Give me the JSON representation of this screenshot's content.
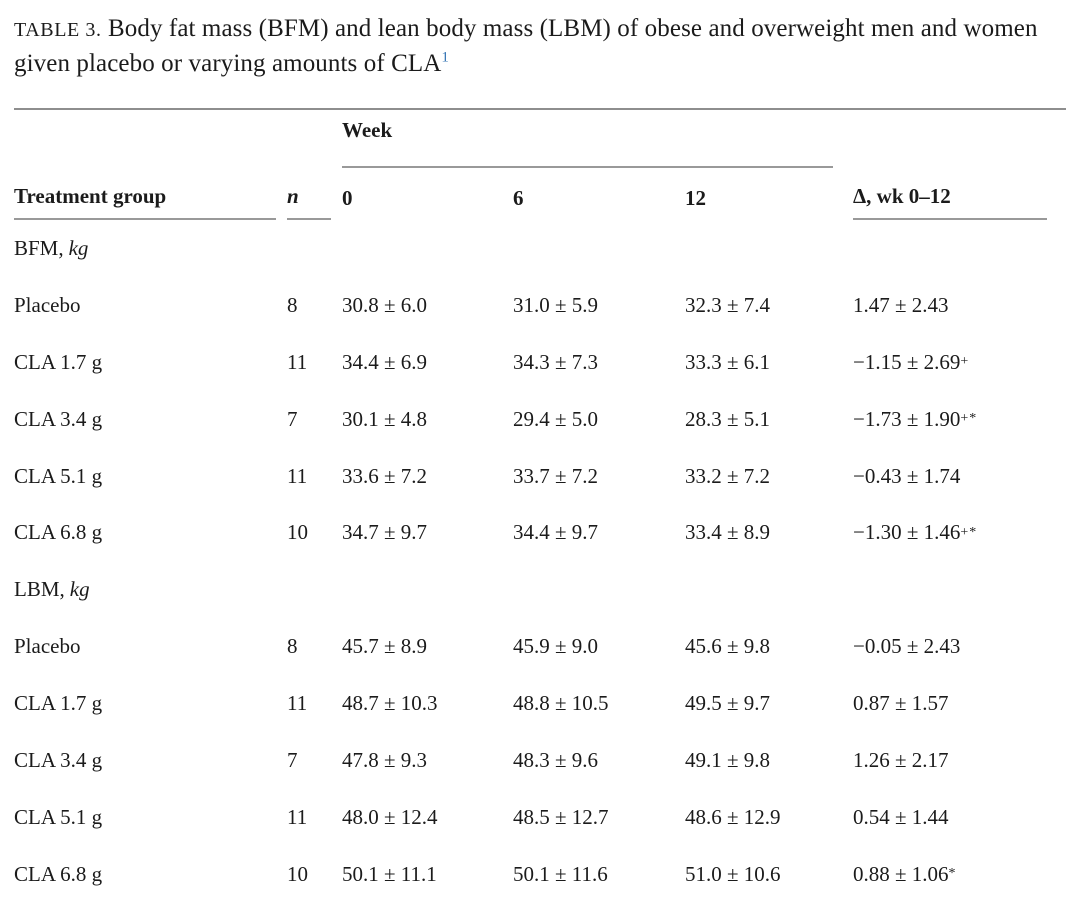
{
  "colors": {
    "text": "#1b1b1b",
    "rule": "#999999",
    "footnote_link": "#3474b4",
    "background": "#ffffff"
  },
  "title": {
    "label": "TABLE 3.",
    "text": " Body fat mass (BFM) and lean body mass (LBM) of obese and overweight men and women given placebo or varying amounts of CLA",
    "footnote_ref": "1"
  },
  "table": {
    "spanner": "Week",
    "headers": {
      "group": "Treatment group",
      "n": "n",
      "w0": "0",
      "w6": "6",
      "w12": "12",
      "delta": "Δ, wk 0–12"
    },
    "sections": [
      {
        "label": "BFM,",
        "unit": "kg",
        "rows": [
          {
            "group": "Placebo",
            "n": "8",
            "w0": "30.8 ± 6.0",
            "w6": "31.0 ± 5.9",
            "w12": "32.3 ± 7.4",
            "delta": "1.47 ± 2.43",
            "delta_sup": ""
          },
          {
            "group": "CLA 1.7 g",
            "n": "11",
            "w0": "34.4 ± 6.9",
            "w6": "34.3 ± 7.3",
            "w12": "33.3 ± 6.1",
            "delta": "−1.15 ± 2.69",
            "delta_sup": "+"
          },
          {
            "group": "CLA 3.4 g",
            "n": "7",
            "w0": "30.1 ± 4.8",
            "w6": "29.4 ± 5.0",
            "w12": "28.3 ± 5.1",
            "delta": "−1.73 ± 1.90",
            "delta_sup": "+*"
          },
          {
            "group": "CLA 5.1 g",
            "n": "11",
            "w0": "33.6 ± 7.2",
            "w6": "33.7 ± 7.2",
            "w12": "33.2 ± 7.2",
            "delta": "−0.43 ± 1.74",
            "delta_sup": ""
          },
          {
            "group": "CLA 6.8 g",
            "n": "10",
            "w0": "34.7 ± 9.7",
            "w6": "34.4 ± 9.7",
            "w12": "33.4 ± 8.9",
            "delta": "−1.30 ± 1.46",
            "delta_sup": "+*"
          }
        ]
      },
      {
        "label": "LBM,",
        "unit": "kg",
        "rows": [
          {
            "group": "Placebo",
            "n": "8",
            "w0": "45.7 ± 8.9",
            "w6": "45.9 ± 9.0",
            "w12": "45.6 ± 9.8",
            "delta": "−0.05 ± 2.43",
            "delta_sup": ""
          },
          {
            "group": "CLA 1.7 g",
            "n": "11",
            "w0": "48.7 ± 10.3",
            "w6": "48.8 ± 10.5",
            "w12": "49.5 ± 9.7",
            "delta": "0.87 ± 1.57",
            "delta_sup": ""
          },
          {
            "group": "CLA 3.4 g",
            "n": "7",
            "w0": "47.8 ± 9.3",
            "w6": "48.3 ± 9.6",
            "w12": "49.1 ± 9.8",
            "delta": "1.26 ± 2.17",
            "delta_sup": ""
          },
          {
            "group": "CLA 5.1 g",
            "n": "11",
            "w0": "48.0 ± 12.4",
            "w6": "48.5 ± 12.7",
            "w12": "48.6 ± 12.9",
            "delta": "0.54 ± 1.44",
            "delta_sup": ""
          },
          {
            "group": "CLA 6.8 g",
            "n": "10",
            "w0": "50.1 ± 11.1",
            "w6": "50.1 ± 11.6",
            "w12": "51.0 ± 10.6",
            "delta": "0.88 ± 1.06",
            "delta_sup": "*"
          }
        ]
      }
    ]
  }
}
